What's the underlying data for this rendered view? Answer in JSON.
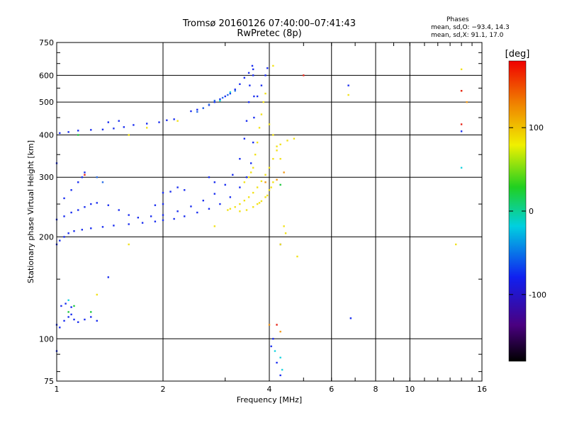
{
  "chart_data": {
    "type": "scatter",
    "title": "Tromsø 20160126 07:40:00–07:41:43",
    "subtitle": "RwPretec (8p)",
    "xlabel": "Frequency [MHz]",
    "ylabel": "Stationary phase Virtual Height [km]",
    "x_scale": "log",
    "y_scale": "log",
    "xlim": [
      1,
      16
    ],
    "ylim": [
      75,
      750
    ],
    "grid": true,
    "x_ticks": [
      1,
      2,
      4,
      6,
      8,
      10,
      16
    ],
    "y_ticks": [
      75,
      100,
      200,
      300,
      400,
      500,
      600,
      750
    ],
    "phases_box": {
      "title": "Phases",
      "line_o": "mean, sd,O: −93.4, 14.3",
      "line_x": "mean, sd,X:  91.1, 17.0"
    },
    "colorbar": {
      "label": "[deg]",
      "range": [
        -180,
        180
      ],
      "ticks": [
        100,
        0,
        -100
      ],
      "colormap": "rainbow: black→purple→blue→cyan→green→yellow→orange→red"
    },
    "series": [
      {
        "phase_deg": -100,
        "color": "#1a2ef0",
        "points": [
          [
            1.0,
            190
          ],
          [
            1.02,
            195
          ],
          [
            1.05,
            200
          ],
          [
            1.08,
            205
          ],
          [
            1.12,
            208
          ],
          [
            1.18,
            210
          ],
          [
            1.25,
            212
          ],
          [
            1.35,
            214
          ],
          [
            1.45,
            216
          ],
          [
            1.6,
            218
          ],
          [
            1.75,
            220
          ],
          [
            1.9,
            222
          ],
          [
            2.0,
            224
          ],
          [
            2.15,
            226
          ],
          [
            2.3,
            230
          ],
          [
            2.5,
            236
          ],
          [
            2.7,
            242
          ],
          [
            2.9,
            250
          ],
          [
            3.1,
            262
          ],
          [
            3.3,
            280
          ],
          [
            3.45,
            300
          ],
          [
            3.55,
            330
          ],
          [
            3.6,
            380
          ],
          [
            3.62,
            450
          ],
          [
            3.62,
            520
          ],
          [
            3.6,
            600
          ],
          [
            3.58,
            640
          ],
          [
            1.0,
            225
          ],
          [
            1.05,
            230
          ],
          [
            1.1,
            236
          ],
          [
            1.15,
            240
          ],
          [
            1.2,
            245
          ],
          [
            1.25,
            250
          ],
          [
            1.3,
            252
          ],
          [
            1.4,
            248
          ],
          [
            1.5,
            240
          ],
          [
            1.6,
            232
          ],
          [
            1.7,
            228
          ],
          [
            1.85,
            230
          ],
          [
            2.0,
            232
          ],
          [
            2.2,
            238
          ],
          [
            2.4,
            246
          ],
          [
            2.6,
            256
          ],
          [
            2.8,
            268
          ],
          [
            3.0,
            285
          ],
          [
            3.15,
            305
          ],
          [
            3.3,
            340
          ],
          [
            3.4,
            390
          ],
          [
            3.45,
            440
          ],
          [
            3.5,
            500
          ],
          [
            3.52,
            560
          ],
          [
            1.05,
            260
          ],
          [
            1.1,
            275
          ],
          [
            1.15,
            290
          ],
          [
            1.18,
            300
          ],
          [
            1.2,
            310
          ],
          [
            1.0,
            330
          ],
          [
            1.02,
            405
          ],
          [
            1.08,
            408
          ],
          [
            1.15,
            412
          ],
          [
            1.25,
            414
          ],
          [
            1.35,
            415
          ],
          [
            1.45,
            418
          ],
          [
            1.55,
            422
          ],
          [
            1.65,
            428
          ],
          [
            1.8,
            432
          ],
          [
            1.95,
            436
          ],
          [
            2.05,
            442
          ],
          [
            2.15,
            445
          ],
          [
            1.5,
            440
          ],
          [
            1.4,
            436
          ],
          [
            2.4,
            470
          ],
          [
            2.5,
            475
          ],
          [
            2.6,
            480
          ],
          [
            2.7,
            490
          ],
          [
            2.8,
            500
          ],
          [
            2.9,
            510
          ],
          [
            3.0,
            520
          ],
          [
            3.1,
            530
          ],
          [
            3.2,
            545
          ],
          [
            3.3,
            565
          ],
          [
            3.4,
            590
          ],
          [
            3.5,
            610
          ],
          [
            3.6,
            625
          ],
          [
            2.0,
            270
          ],
          [
            2.1,
            272
          ],
          [
            2.0,
            250
          ],
          [
            1.9,
            248
          ],
          [
            2.2,
            280
          ],
          [
            2.3,
            275
          ],
          [
            2.7,
            300
          ],
          [
            2.8,
            290
          ],
          [
            3.7,
            520
          ],
          [
            3.8,
            560
          ],
          [
            3.9,
            600
          ],
          [
            3.95,
            630
          ],
          [
            4.05,
            95
          ],
          [
            4.1,
            100
          ],
          [
            4.2,
            85
          ],
          [
            4.3,
            78
          ],
          [
            1.0,
            110
          ],
          [
            1.02,
            108
          ],
          [
            1.05,
            113
          ],
          [
            1.08,
            116
          ],
          [
            1.1,
            118
          ],
          [
            1.12,
            114
          ],
          [
            1.15,
            112
          ],
          [
            1.2,
            114
          ],
          [
            1.25,
            116
          ],
          [
            1.3,
            113
          ],
          [
            1.03,
            125
          ],
          [
            1.06,
            127
          ],
          [
            1.1,
            124
          ],
          [
            1.4,
            152
          ],
          [
            6.7,
            560
          ],
          [
            6.8,
            115
          ],
          [
            14.0,
            410
          ],
          [
            4.3,
            190
          ],
          [
            1.0,
            92
          ]
        ]
      },
      {
        "phase_deg": -80,
        "color": "#2b6fe8",
        "points": [
          [
            2.6,
            480
          ],
          [
            2.7,
            492
          ],
          [
            2.8,
            505
          ],
          [
            2.95,
            515
          ],
          [
            3.05,
            525
          ],
          [
            3.2,
            540
          ],
          [
            1.3,
            300
          ],
          [
            1.35,
            290
          ],
          [
            2.5,
            468
          ]
        ]
      },
      {
        "phase_deg": 100,
        "color": "#f2e21a",
        "points": [
          [
            3.05,
            240
          ],
          [
            3.1,
            242
          ],
          [
            3.2,
            245
          ],
          [
            3.3,
            250
          ],
          [
            3.4,
            256
          ],
          [
            3.5,
            262
          ],
          [
            3.6,
            270
          ],
          [
            3.7,
            280
          ],
          [
            3.8,
            292
          ],
          [
            3.9,
            305
          ],
          [
            4.0,
            320
          ],
          [
            4.1,
            340
          ],
          [
            4.2,
            360
          ],
          [
            4.3,
            375
          ],
          [
            4.5,
            385
          ],
          [
            4.7,
            390
          ],
          [
            3.3,
            238
          ],
          [
            3.45,
            240
          ],
          [
            3.6,
            245
          ],
          [
            3.75,
            252
          ],
          [
            3.9,
            262
          ],
          [
            4.0,
            275
          ],
          [
            4.1,
            290
          ],
          [
            3.5,
            300
          ],
          [
            3.6,
            320
          ],
          [
            3.65,
            350
          ],
          [
            3.7,
            380
          ],
          [
            3.75,
            420
          ],
          [
            3.8,
            460
          ],
          [
            3.85,
            500
          ],
          [
            3.9,
            530
          ],
          [
            4.0,
            430
          ],
          [
            4.1,
            400
          ],
          [
            4.2,
            370
          ],
          [
            4.3,
            340
          ],
          [
            3.7,
            250
          ],
          [
            3.8,
            255
          ],
          [
            3.95,
            265
          ],
          [
            4.05,
            280
          ],
          [
            3.4,
            290
          ],
          [
            3.55,
            310
          ],
          [
            4.4,
            215
          ],
          [
            4.45,
            205
          ],
          [
            4.3,
            190
          ],
          [
            4.8,
            175
          ],
          [
            4.1,
            640
          ],
          [
            1.6,
            190
          ],
          [
            1.3,
            135
          ],
          [
            1.6,
            400
          ],
          [
            1.8,
            420
          ],
          [
            2.2,
            440
          ],
          [
            2.8,
            215
          ],
          [
            6.7,
            525
          ],
          [
            13.5,
            190
          ],
          [
            14.0,
            625
          ]
        ]
      },
      {
        "phase_deg": 150,
        "color": "#f29a1a",
        "points": [
          [
            4.2,
            295
          ],
          [
            4.4,
            310
          ],
          [
            3.9,
            290
          ],
          [
            14.0,
            540
          ],
          [
            14.5,
            500
          ],
          [
            4.0,
            110
          ],
          [
            4.3,
            105
          ]
        ]
      },
      {
        "phase_deg": 175,
        "color": "#e8261a",
        "points": [
          [
            14.0,
            540
          ],
          [
            4.2,
            110
          ],
          [
            5.0,
            600
          ],
          [
            1.2,
            305
          ],
          [
            14.0,
            430
          ]
        ]
      },
      {
        "phase_deg": 20,
        "color": "#20c840",
        "points": [
          [
            1.08,
            120
          ],
          [
            1.12,
            125
          ],
          [
            1.25,
            120
          ],
          [
            1.15,
            400
          ],
          [
            4.3,
            285
          ]
        ]
      },
      {
        "phase_deg": -20,
        "color": "#1ad4e0",
        "points": [
          [
            4.15,
            92
          ],
          [
            4.3,
            88
          ],
          [
            4.35,
            81
          ],
          [
            14.0,
            320
          ],
          [
            1.08,
            130
          ],
          [
            3.1,
            535
          ],
          [
            2.9,
            505
          ]
        ]
      }
    ]
  }
}
